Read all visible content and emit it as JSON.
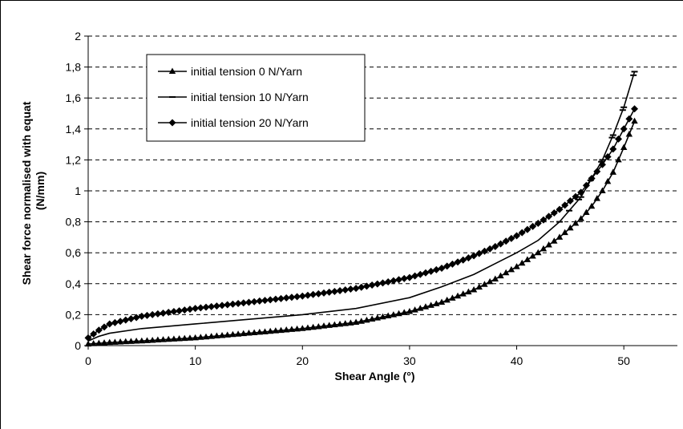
{
  "chart_data": {
    "type": "line",
    "xlabel": "Shear Angle (°)",
    "ylabel": "Shear force normalised with equat (N/mm)",
    "ylabel_lines": [
      "Shear force normalised with equat",
      "(N/mm)"
    ],
    "xlim": [
      0,
      55
    ],
    "ylim": [
      0,
      2
    ],
    "x_ticks": [
      0,
      10,
      20,
      30,
      40,
      50
    ],
    "x_tick_labels": [
      "0",
      "10",
      "20",
      "30",
      "40",
      "50"
    ],
    "y_ticks": [
      0,
      0.2,
      0.4,
      0.6,
      0.8,
      1,
      1.2,
      1.4,
      1.6,
      1.8,
      2
    ],
    "y_tick_labels": [
      "0",
      "0,2",
      "0,4",
      "0,6",
      "0,8",
      "1",
      "1,2",
      "1,4",
      "1,6",
      "1,8",
      "2"
    ],
    "grid": "horizontal dashed",
    "legend_position": "top-left",
    "series": [
      {
        "name": "initial tension 0 N/Yarn",
        "marker": "triangle",
        "x": [
          0,
          2,
          5,
          10,
          15,
          20,
          25,
          30,
          33,
          36,
          38,
          40,
          42,
          44,
          46,
          47,
          48,
          49,
          50,
          51
        ],
        "y": [
          0.01,
          0.02,
          0.03,
          0.05,
          0.08,
          0.11,
          0.15,
          0.22,
          0.28,
          0.36,
          0.43,
          0.51,
          0.6,
          0.7,
          0.82,
          0.9,
          1.0,
          1.12,
          1.28,
          1.45
        ]
      },
      {
        "name": "initial tension 10 N/Yarn",
        "marker": "dash",
        "x": [
          0,
          1,
          2,
          5,
          10,
          15,
          20,
          25,
          30,
          33,
          36,
          38,
          40,
          42,
          44,
          46,
          47,
          48,
          49,
          50,
          51
        ],
        "y": [
          0.03,
          0.06,
          0.08,
          0.11,
          0.14,
          0.17,
          0.2,
          0.24,
          0.31,
          0.38,
          0.46,
          0.53,
          0.6,
          0.68,
          0.8,
          0.96,
          1.08,
          1.2,
          1.36,
          1.54,
          1.77
        ]
      },
      {
        "name": "initial tension 20 N/Yarn",
        "marker": "diamond",
        "x": [
          0,
          1,
          2,
          5,
          10,
          15,
          20,
          25,
          30,
          33,
          36,
          38,
          40,
          42,
          44,
          46,
          48,
          49,
          50,
          51
        ],
        "y": [
          0.05,
          0.1,
          0.14,
          0.19,
          0.24,
          0.28,
          0.32,
          0.37,
          0.44,
          0.5,
          0.58,
          0.64,
          0.71,
          0.79,
          0.88,
          0.99,
          1.17,
          1.27,
          1.4,
          1.53
        ]
      }
    ]
  }
}
